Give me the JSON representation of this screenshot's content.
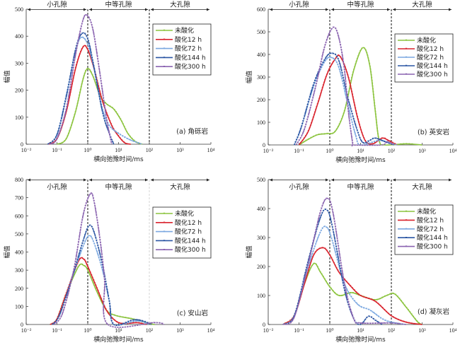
{
  "figure": {
    "xlabel": "横向弛豫时间/ms",
    "ylabel": "幅值",
    "x_tick_labels": [
      "10⁻²",
      "10⁻¹",
      "10⁰",
      "10¹",
      "10²",
      "10³",
      "10⁴"
    ],
    "regions": [
      "小孔隙",
      "中等孔隙",
      "大孔隙"
    ],
    "legend": [
      "未酸化",
      "酸化12 h",
      "酸化72 h",
      "酸化144 h",
      "酸化300 h"
    ],
    "series_colors": [
      "#8cc43f",
      "#d9232d",
      "#7aa7e0",
      "#2a55a3",
      "#8a63b0"
    ]
  },
  "chart_data": [
    {
      "type": "line",
      "title": "(a) 角砾岩",
      "xscale": "log",
      "xlim": [
        0.01,
        10000
      ],
      "ylim": [
        0,
        500
      ],
      "yticks": [
        0,
        100,
        200,
        300,
        400,
        500
      ],
      "xlabel": "横向弛豫时间/ms",
      "ylabel": "幅值",
      "boundaries": [
        1,
        100
      ],
      "legend_position": "top-right",
      "series": [
        {
          "name": "未酸化",
          "points": [
            [
              0.1,
              0
            ],
            [
              0.2,
              20
            ],
            [
              0.4,
              120
            ],
            [
              0.7,
              240
            ],
            [
              1.0,
              280
            ],
            [
              1.5,
              250
            ],
            [
              2.5,
              180
            ],
            [
              4,
              150
            ],
            [
              7,
              130
            ],
            [
              12,
              90
            ],
            [
              20,
              40
            ],
            [
              35,
              10
            ],
            [
              60,
              0
            ]
          ]
        },
        {
          "name": "酸化12 h",
          "points": [
            [
              0.05,
              0
            ],
            [
              0.1,
              20
            ],
            [
              0.2,
              120
            ],
            [
              0.4,
              280
            ],
            [
              0.7,
              360
            ],
            [
              1.0,
              350
            ],
            [
              1.6,
              280
            ],
            [
              3,
              160
            ],
            [
              6,
              70
            ],
            [
              10,
              30
            ],
            [
              16,
              5
            ],
            [
              25,
              0
            ]
          ]
        },
        {
          "name": "酸化72 h",
          "points": [
            [
              0.05,
              0
            ],
            [
              0.1,
              35
            ],
            [
              0.2,
              180
            ],
            [
              0.4,
              340
            ],
            [
              0.6,
              395
            ],
            [
              1.0,
              370
            ],
            [
              1.6,
              280
            ],
            [
              3,
              130
            ],
            [
              5,
              70
            ],
            [
              10,
              40
            ],
            [
              25,
              15
            ],
            [
              60,
              0
            ]
          ]
        },
        {
          "name": "酸化144 h",
          "points": [
            [
              0.05,
              0
            ],
            [
              0.1,
              35
            ],
            [
              0.2,
              175
            ],
            [
              0.4,
              350
            ],
            [
              0.65,
              410
            ],
            [
              1.0,
              390
            ],
            [
              1.5,
              300
            ],
            [
              3,
              120
            ],
            [
              5,
              40
            ],
            [
              7,
              0
            ]
          ]
        },
        {
          "name": "酸化300 h",
          "points": [
            [
              0.06,
              0
            ],
            [
              0.1,
              20
            ],
            [
              0.2,
              130
            ],
            [
              0.4,
              330
            ],
            [
              0.7,
              460
            ],
            [
              1.0,
              475
            ],
            [
              1.5,
              420
            ],
            [
              2.5,
              260
            ],
            [
              4,
              100
            ],
            [
              5.5,
              20
            ],
            [
              6,
              0
            ]
          ]
        }
      ]
    },
    {
      "type": "line",
      "title": "(b) 英安岩",
      "xscale": "log",
      "xlim": [
        0.01,
        10000
      ],
      "ylim": [
        0,
        600
      ],
      "yticks": [
        0,
        100,
        200,
        300,
        400,
        500,
        600
      ],
      "xlabel": "横向弛豫时间/ms",
      "ylabel": "幅值",
      "boundaries": [
        1,
        100
      ],
      "legend_position": "top-right",
      "series": [
        {
          "name": "未酸化",
          "points": [
            [
              0.1,
              0
            ],
            [
              0.2,
              25
            ],
            [
              0.4,
              45
            ],
            [
              0.8,
              50
            ],
            [
              1.5,
              60
            ],
            [
              3,
              150
            ],
            [
              6,
              330
            ],
            [
              12,
              430
            ],
            [
              20,
              350
            ],
            [
              30,
              150
            ],
            [
              40,
              20
            ],
            [
              60,
              0
            ],
            [
              300,
              5
            ],
            [
              1000,
              0
            ]
          ]
        },
        {
          "name": "酸化12 h",
          "points": [
            [
              0.1,
              0
            ],
            [
              0.2,
              60
            ],
            [
              0.4,
              180
            ],
            [
              0.8,
              310
            ],
            [
              1.5,
              380
            ],
            [
              2.2,
              390
            ],
            [
              4,
              300
            ],
            [
              8,
              120
            ],
            [
              14,
              20
            ],
            [
              25,
              5
            ],
            [
              50,
              30
            ],
            [
              80,
              20
            ],
            [
              150,
              0
            ]
          ]
        },
        {
          "name": "酸化72 h",
          "points": [
            [
              0.07,
              0
            ],
            [
              0.12,
              80
            ],
            [
              0.3,
              260
            ],
            [
              0.7,
              370
            ],
            [
              1.2,
              385
            ],
            [
              2,
              340
            ],
            [
              4,
              170
            ],
            [
              7,
              40
            ],
            [
              10,
              0
            ],
            [
              40,
              20
            ],
            [
              80,
              10
            ],
            [
              150,
              0
            ]
          ]
        },
        {
          "name": "酸化144 h",
          "points": [
            [
              0.07,
              0
            ],
            [
              0.12,
              80
            ],
            [
              0.3,
              270
            ],
            [
              0.7,
              380
            ],
            [
              1.2,
              405
            ],
            [
              2,
              370
            ],
            [
              4,
              200
            ],
            [
              8,
              60
            ],
            [
              12,
              10
            ],
            [
              20,
              20
            ],
            [
              30,
              30
            ],
            [
              60,
              15
            ],
            [
              120,
              0
            ]
          ]
        },
        {
          "name": "酸化300 h",
          "points": [
            [
              0.08,
              0
            ],
            [
              0.15,
              70
            ],
            [
              0.35,
              260
            ],
            [
              0.7,
              440
            ],
            [
              1.3,
              520
            ],
            [
              2,
              470
            ],
            [
              3,
              330
            ],
            [
              4,
              150
            ],
            [
              5.5,
              10
            ],
            [
              6,
              0
            ],
            [
              50,
              0
            ],
            [
              70,
              15
            ],
            [
              120,
              0
            ]
          ]
        }
      ]
    },
    {
      "type": "line",
      "title": "(c) 安山岩",
      "xscale": "log",
      "xlim": [
        0.01,
        10000
      ],
      "ylim": [
        0,
        800
      ],
      "yticks": [
        0,
        100,
        200,
        300,
        400,
        500,
        600,
        700,
        800
      ],
      "xlabel": "横向弛豫时间/ms",
      "ylabel": "幅值",
      "boundaries": [
        1
      ],
      "legend_position": "top-right",
      "series": [
        {
          "name": "未酸化",
          "points": [
            [
              0.06,
              0
            ],
            [
              0.1,
              30
            ],
            [
              0.2,
              170
            ],
            [
              0.5,
              320
            ],
            [
              0.75,
              325
            ],
            [
              1.0,
              300
            ],
            [
              2,
              180
            ],
            [
              4,
              80
            ],
            [
              8,
              50
            ],
            [
              30,
              30
            ],
            [
              100,
              5
            ],
            [
              150,
              0
            ]
          ]
        },
        {
          "name": "酸化12 h",
          "points": [
            [
              0.06,
              0
            ],
            [
              0.1,
              30
            ],
            [
              0.2,
              170
            ],
            [
              0.5,
              350
            ],
            [
              0.75,
              360
            ],
            [
              1.0,
              320
            ],
            [
              2,
              200
            ],
            [
              4,
              80
            ],
            [
              8,
              20
            ],
            [
              15,
              5
            ],
            [
              40,
              10
            ],
            [
              80,
              0
            ]
          ]
        },
        {
          "name": "酸化72 h",
          "points": [
            [
              0.07,
              0
            ],
            [
              0.12,
              50
            ],
            [
              0.3,
              250
            ],
            [
              0.7,
              430
            ],
            [
              1.1,
              490
            ],
            [
              1.6,
              450
            ],
            [
              3,
              300
            ],
            [
              5,
              130
            ],
            [
              7,
              0
            ],
            [
              40,
              20
            ],
            [
              100,
              0
            ]
          ]
        },
        {
          "name": "酸化144 h",
          "points": [
            [
              0.07,
              0
            ],
            [
              0.12,
              50
            ],
            [
              0.3,
              250
            ],
            [
              0.7,
              460
            ],
            [
              1.1,
              545
            ],
            [
              1.6,
              510
            ],
            [
              3,
              330
            ],
            [
              5,
              130
            ],
            [
              7,
              0
            ],
            [
              30,
              25
            ],
            [
              60,
              20
            ],
            [
              120,
              0
            ]
          ]
        },
        {
          "name": "酸化300 h",
          "points": [
            [
              0.08,
              0
            ],
            [
              0.15,
              60
            ],
            [
              0.35,
              300
            ],
            [
              0.7,
              600
            ],
            [
              1.2,
              720
            ],
            [
              1.6,
              680
            ],
            [
              2.5,
              470
            ],
            [
              3.5,
              250
            ],
            [
              4.5,
              0
            ],
            [
              150,
              10
            ],
            [
              300,
              0
            ]
          ]
        }
      ]
    },
    {
      "type": "line",
      "title": "(d) 凝灰岩",
      "xscale": "log",
      "xlim": [
        0.01,
        10000
      ],
      "ylim": [
        0,
        500
      ],
      "yticks": [
        0,
        100,
        200,
        300,
        400,
        500
      ],
      "xlabel": "横向弛豫时间/ms",
      "ylabel": "幅值",
      "boundaries": [
        1,
        100
      ],
      "legend_position": "top-right",
      "series": [
        {
          "name": "未酸化",
          "points": [
            [
              0.03,
              0
            ],
            [
              0.07,
              30
            ],
            [
              0.15,
              140
            ],
            [
              0.3,
              210
            ],
            [
              0.5,
              180
            ],
            [
              1.0,
              130
            ],
            [
              2,
              100
            ],
            [
              5,
              110
            ],
            [
              10,
              100
            ],
            [
              30,
              85
            ],
            [
              70,
              100
            ],
            [
              130,
              105
            ],
            [
              300,
              60
            ],
            [
              700,
              10
            ],
            [
              1000,
              0
            ]
          ]
        },
        {
          "name": "酸化12 h",
          "points": [
            [
              0.03,
              0
            ],
            [
              0.07,
              30
            ],
            [
              0.15,
              140
            ],
            [
              0.3,
              240
            ],
            [
              0.6,
              265
            ],
            [
              1.0,
              240
            ],
            [
              2,
              180
            ],
            [
              5,
              130
            ],
            [
              10,
              100
            ],
            [
              30,
              80
            ],
            [
              100,
              30
            ],
            [
              300,
              8
            ],
            [
              1000,
              0
            ]
          ]
        },
        {
          "name": "酸化72 h",
          "points": [
            [
              0.03,
              0
            ],
            [
              0.07,
              30
            ],
            [
              0.2,
              200
            ],
            [
              0.5,
              320
            ],
            [
              0.8,
              335
            ],
            [
              1.2,
              290
            ],
            [
              3,
              140
            ],
            [
              8,
              70
            ],
            [
              20,
              50
            ],
            [
              50,
              20
            ],
            [
              100,
              8
            ],
            [
              300,
              0
            ]
          ]
        },
        {
          "name": "酸化144 h",
          "points": [
            [
              0.03,
              0
            ],
            [
              0.07,
              30
            ],
            [
              0.2,
              220
            ],
            [
              0.5,
              370
            ],
            [
              0.8,
              395
            ],
            [
              1.2,
              340
            ],
            [
              3,
              120
            ],
            [
              6,
              20
            ],
            [
              10,
              0
            ],
            [
              18,
              28
            ],
            [
              30,
              15
            ],
            [
              50,
              0
            ]
          ]
        },
        {
          "name": "酸化300 h",
          "points": [
            [
              0.03,
              0
            ],
            [
              0.07,
              25
            ],
            [
              0.2,
              210
            ],
            [
              0.5,
              390
            ],
            [
              0.85,
              435
            ],
            [
              1.3,
              380
            ],
            [
              3,
              140
            ],
            [
              6,
              20
            ],
            [
              10,
              5
            ],
            [
              100,
              5
            ],
            [
              300,
              0
            ]
          ]
        }
      ]
    }
  ]
}
